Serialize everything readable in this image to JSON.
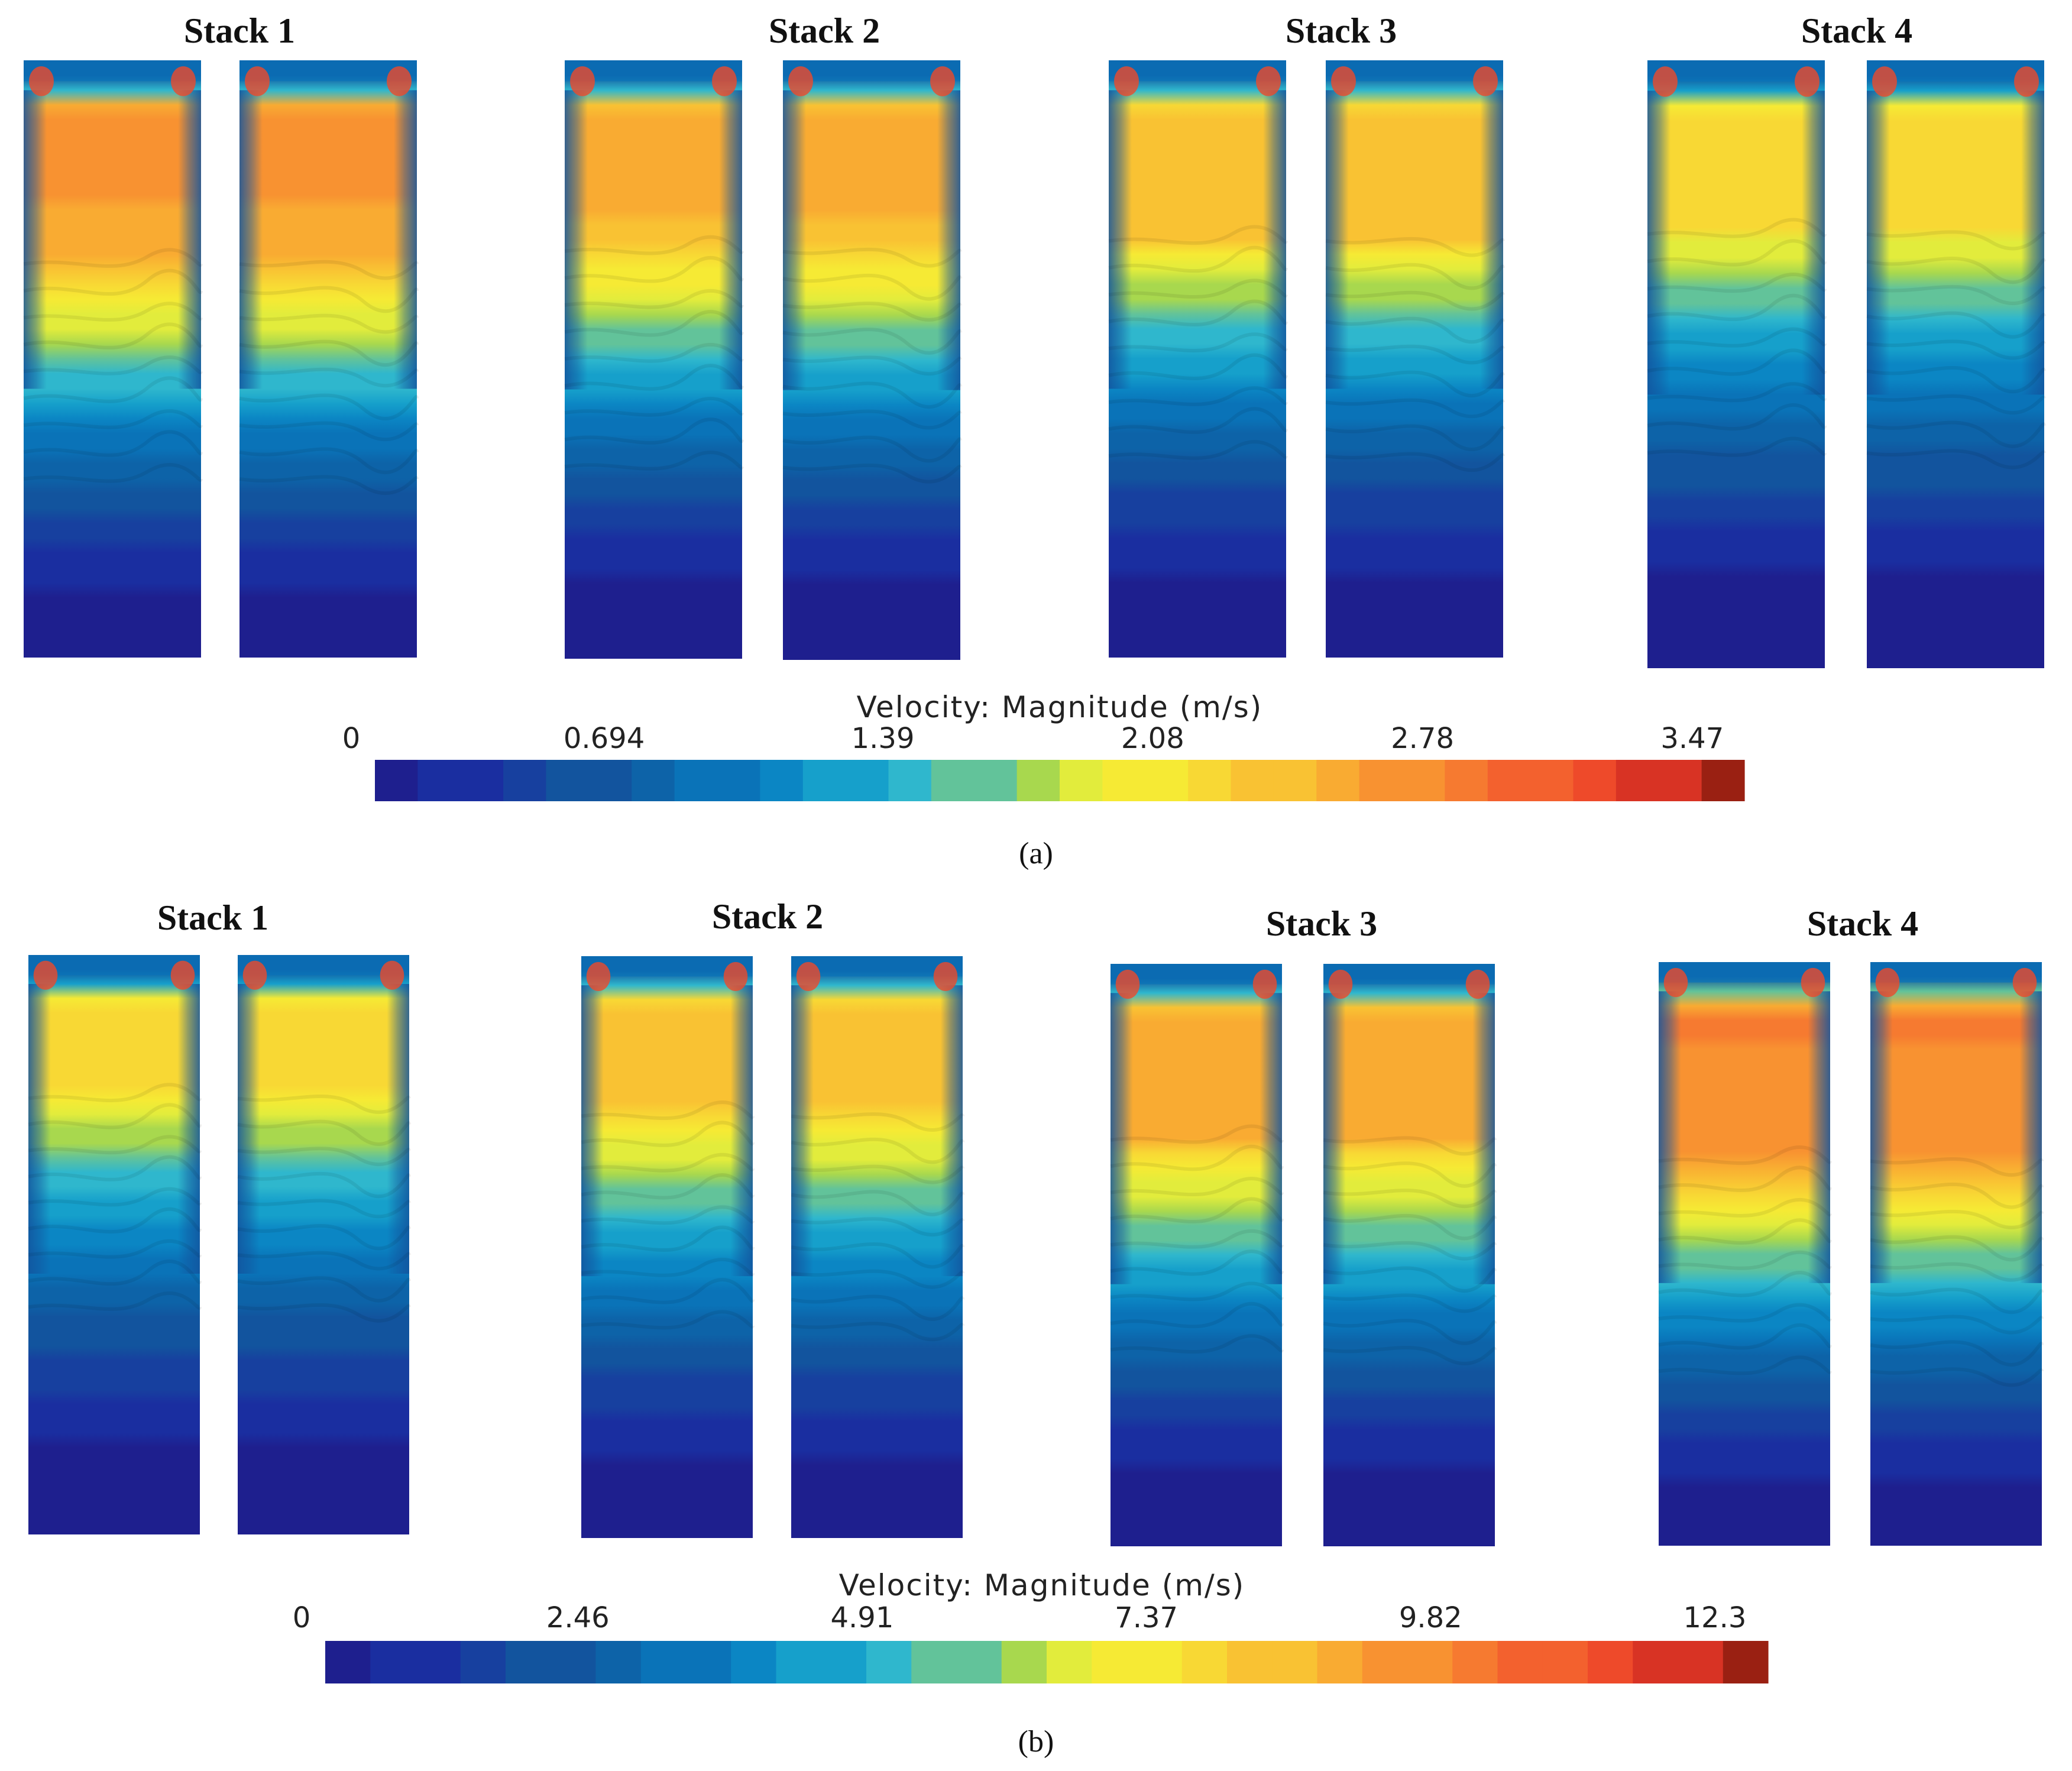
{
  "colormap": [
    "#1e1f8e",
    "#1a2ea0",
    "#17409f",
    "#12549e",
    "#0d63a8",
    "#0a73b8",
    "#0b86c4",
    "#16a0cb",
    "#2fb7cd",
    "#62c39a",
    "#a8d84e",
    "#e2ec3c",
    "#f6ea34",
    "#f8d834",
    "#f9c233",
    "#f9ab32",
    "#f89231",
    "#f67a30",
    "#f3612e",
    "#ee4a2a",
    "#d83324",
    "#9a2012"
  ],
  "panels": [
    {
      "caption": "(a)",
      "colorbar": {
        "title": "Velocity: Magnitude (m/s)",
        "ticks": [
          "0",
          "0.694",
          "1.39",
          "2.08",
          "2.78",
          "3.47"
        ],
        "range": [
          0,
          3.47
        ]
      },
      "stacks": [
        {
          "label": "Stack 1",
          "peak_level": 0.7,
          "drop": 0.62
        },
        {
          "label": "Stack 2",
          "peak_level": 0.66,
          "drop": 0.58
        },
        {
          "label": "Stack 3",
          "peak_level": 0.62,
          "drop": 0.55
        },
        {
          "label": "Stack 4",
          "peak_level": 0.58,
          "drop": 0.52
        }
      ]
    },
    {
      "caption": "(b)",
      "colorbar": {
        "title": "Velocity: Magnitude (m/s)",
        "ticks": [
          "0",
          "2.46",
          "4.91",
          "7.37",
          "9.82",
          "12.3"
        ],
        "range": [
          0,
          12.3
        ]
      },
      "stacks": [
        {
          "label": "Stack 1",
          "peak_level": 0.58,
          "drop": 0.45
        },
        {
          "label": "Stack 2",
          "peak_level": 0.63,
          "drop": 0.5
        },
        {
          "label": "Stack 3",
          "peak_level": 0.68,
          "drop": 0.55
        },
        {
          "label": "Stack 4",
          "peak_level": 0.73,
          "drop": 0.62
        }
      ]
    }
  ]
}
